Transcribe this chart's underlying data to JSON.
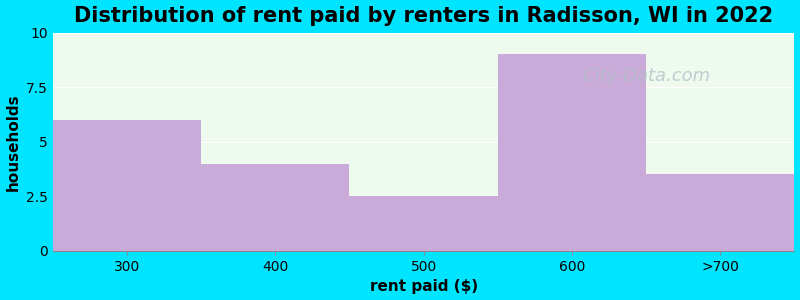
{
  "title": "Distribution of rent paid by renters in Radisson, WI in 2022",
  "tick_labels": [
    "300",
    "400",
    "500",
    "600",
    ">700"
  ],
  "values": [
    6,
    4,
    2.5,
    9,
    3.5
  ],
  "bar_color": "#c9aad8",
  "background_color": "#00e5ff",
  "plot_bg_color": "#edfaed",
  "xlabel": "rent paid ($)",
  "ylabel": "households",
  "ylim": [
    0,
    10
  ],
  "yticks": [
    0,
    2.5,
    5,
    7.5,
    10
  ],
  "title_fontsize": 15,
  "axis_label_fontsize": 11,
  "tick_fontsize": 10,
  "watermark_text": "City-Data.com",
  "watermark_color": "#b0bec8",
  "watermark_fontsize": 13
}
